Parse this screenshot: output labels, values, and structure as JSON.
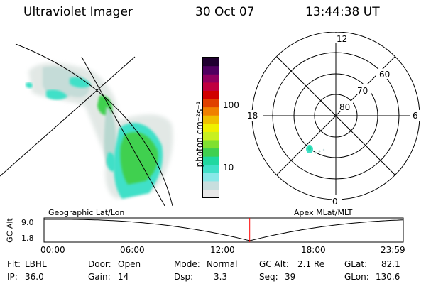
{
  "header": {
    "title": "Ultraviolet Imager",
    "date": "30 Oct 07",
    "time": "13:44:38 UT"
  },
  "colorbar": {
    "unit_label": "photon cm⁻²s⁻¹",
    "ticks": [
      "100",
      "10"
    ],
    "scale": "log",
    "colors": [
      "#e8e8e8",
      "#c8dede",
      "#88e8e8",
      "#40e0c8",
      "#20d8a0",
      "#40d050",
      "#80e030",
      "#c8f020",
      "#f0f000",
      "#f0c000",
      "#f08000",
      "#e04000",
      "#d00000",
      "#c00040",
      "#900060",
      "#500060",
      "#200030"
    ]
  },
  "left_map": {
    "caption": "Geographic Lat/Lon"
  },
  "right_map": {
    "caption": "Apex MLat/MLT",
    "mlt_labels": {
      "top": "12",
      "left": "18",
      "right": "6",
      "bottom": "0"
    },
    "lat_labels": [
      "60",
      "70",
      "80"
    ]
  },
  "timeline": {
    "ylabel": "GC Alt",
    "ymax": "9.0",
    "ymin": "1.8",
    "ticks": [
      "00:00",
      "06:00",
      "12:00",
      "18:00",
      "23:59"
    ],
    "marker_time": "13:44",
    "marker_color": "#ff0000"
  },
  "info": {
    "flt_label": "Flt:",
    "flt_value": "LBHL",
    "ip_label": "IP:",
    "ip_value": "36.0",
    "door_label": "Door:",
    "door_value": "Open",
    "gain_label": "Gain:",
    "gain_value": "14",
    "mode_label": "Mode:",
    "mode_value": "Normal",
    "dsp_label": "Dsp:",
    "dsp_value": "3.3",
    "gcalt_label": "GC Alt:",
    "gcalt_value": "2.1 Re",
    "seq_label": "Seq:",
    "seq_value": "39",
    "glat_label": "GLat:",
    "glat_value": "82.1",
    "glon_label": "GLon:",
    "glon_value": "130.6"
  }
}
